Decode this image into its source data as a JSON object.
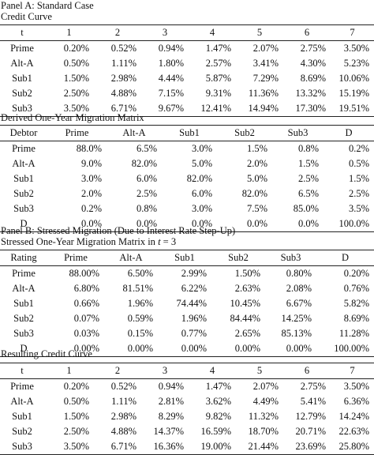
{
  "panel_a": {
    "heading": "Panel A: Standard Case",
    "subheading": "Credit Curve",
    "table": {
      "header": [
        "t",
        "1",
        "2",
        "3",
        "4",
        "5",
        "6",
        "7"
      ],
      "rows": [
        [
          "Prime",
          "0.20%",
          "0.52%",
          "0.94%",
          "1.47%",
          "2.07%",
          "2.75%",
          "3.50%"
        ],
        [
          "Alt-A",
          "0.50%",
          "1.11%",
          "1.80%",
          "2.57%",
          "3.41%",
          "4.30%",
          "5.23%"
        ],
        [
          "Sub1",
          "1.50%",
          "2.98%",
          "4.44%",
          "5.87%",
          "7.29%",
          "8.69%",
          "10.06%"
        ],
        [
          "Sub2",
          "2.50%",
          "4.88%",
          "7.15%",
          "9.31%",
          "11.36%",
          "13.32%",
          "15.19%"
        ],
        [
          "Sub3",
          "3.50%",
          "6.71%",
          "9.67%",
          "12.41%",
          "14.94%",
          "17.30%",
          "19.51%"
        ]
      ]
    }
  },
  "migration": {
    "heading": "Derived One-Year Migration Matrix",
    "table": {
      "header": [
        "Debtor",
        "Prime",
        "Alt-A",
        "Sub1",
        "Sub2",
        "Sub3",
        "D"
      ],
      "rows": [
        [
          "Prime",
          "88.0%",
          "6.5%",
          "3.0%",
          "1.5%",
          "0.8%",
          "0.2%"
        ],
        [
          "Alt-A",
          "9.0%",
          "82.0%",
          "5.0%",
          "2.0%",
          "1.5%",
          "0.5%"
        ],
        [
          "Sub1",
          "3.0%",
          "6.0%",
          "82.0%",
          "5.0%",
          "2.5%",
          "1.5%"
        ],
        [
          "Sub2",
          "2.0%",
          "2.5%",
          "6.0%",
          "82.0%",
          "6.5%",
          "2.5%"
        ],
        [
          "Sub3",
          "0.2%",
          "0.8%",
          "3.0%",
          "7.5%",
          "85.0%",
          "3.5%"
        ],
        [
          "D",
          "0.0%",
          "0.0%",
          "0.0%",
          "0.0%",
          "0.0%",
          "100.0%"
        ]
      ]
    }
  },
  "panel_b": {
    "heading": "Panel B: Stressed Migration (Due to Interest Rate Step-Up)",
    "subheading_prefix": "Stressed One-Year Migration Matrix in ",
    "subheading_var": "t",
    "subheading_suffix": " = 3",
    "table": {
      "header": [
        "Rating",
        "Prime",
        "Alt-A",
        "Sub1",
        "Sub2",
        "Sub3",
        "D"
      ],
      "rows": [
        [
          "Prime",
          "88.00%",
          "6.50%",
          "2.99%",
          "1.50%",
          "0.80%",
          "0.20%"
        ],
        [
          "Alt-A",
          "6.80%",
          "81.51%",
          "6.22%",
          "2.63%",
          "2.08%",
          "0.76%"
        ],
        [
          "Sub1",
          "0.66%",
          "1.96%",
          "74.44%",
          "10.45%",
          "6.67%",
          "5.82%"
        ],
        [
          "Sub2",
          "0.07%",
          "0.59%",
          "1.96%",
          "84.44%",
          "14.25%",
          "8.69%"
        ],
        [
          "Sub3",
          "0.03%",
          "0.15%",
          "0.77%",
          "2.65%",
          "85.13%",
          "11.28%"
        ],
        [
          "D",
          "0.00%",
          "0.00%",
          "0.00%",
          "0.00%",
          "0.00%",
          "100.00%"
        ]
      ]
    }
  },
  "resulting": {
    "heading": "Resulting Credit Curve",
    "table": {
      "header": [
        "t",
        "1",
        "2",
        "3",
        "4",
        "5",
        "6",
        "7"
      ],
      "rows": [
        [
          "Prime",
          "0.20%",
          "0.52%",
          "0.94%",
          "1.47%",
          "2.07%",
          "2.75%",
          "3.50%"
        ],
        [
          "Alt-A",
          "0.50%",
          "1.11%",
          "2.81%",
          "3.62%",
          "4.49%",
          "5.41%",
          "6.36%"
        ],
        [
          "Sub1",
          "1.50%",
          "2.98%",
          "8.29%",
          "9.82%",
          "11.32%",
          "12.79%",
          "14.24%"
        ],
        [
          "Sub2",
          "2.50%",
          "4.88%",
          "14.37%",
          "16.59%",
          "18.70%",
          "20.71%",
          "22.63%"
        ],
        [
          "Sub3",
          "3.50%",
          "6.71%",
          "16.36%",
          "19.00%",
          "21.44%",
          "23.69%",
          "25.80%"
        ]
      ]
    }
  }
}
